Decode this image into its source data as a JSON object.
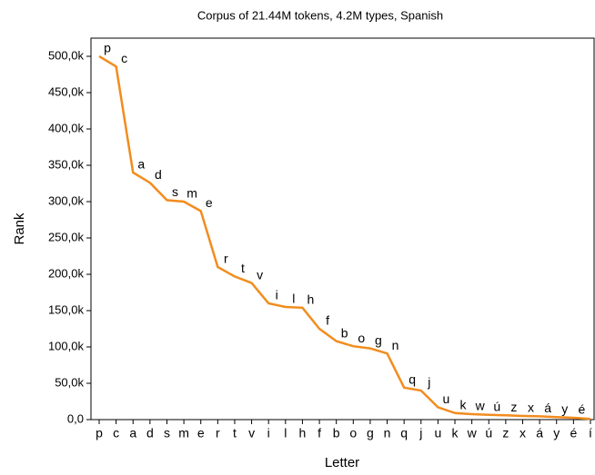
{
  "chart_data": {
    "type": "line",
    "title": "Corpus of 21.44M tokens, 4.2M types, Spanish",
    "x_label": "Letter",
    "y_label": "Rank",
    "categories": [
      "p",
      "c",
      "a",
      "d",
      "s",
      "m",
      "e",
      "r",
      "t",
      "v",
      "i",
      "l",
      "h",
      "f",
      "b",
      "o",
      "g",
      "n",
      "q",
      "j",
      "u",
      "k",
      "w",
      "ú",
      "z",
      "x",
      "á",
      "y",
      "é",
      "í"
    ],
    "values": [
      500000,
      486000,
      340000,
      326000,
      302000,
      300000,
      287000,
      210000,
      197000,
      188000,
      160000,
      155000,
      154000,
      125000,
      108000,
      101000,
      98000,
      91000,
      44000,
      40000,
      17000,
      9000,
      7500,
      6500,
      6000,
      5000,
      4500,
      3500,
      2500,
      1000
    ],
    "color": "#f28c1e",
    "ylim": [
      0,
      525000
    ],
    "yticks": [
      {
        "value": 0,
        "label": "0,0"
      },
      {
        "value": 50000,
        "label": "50,0k"
      },
      {
        "value": 100000,
        "label": "100,0k"
      },
      {
        "value": 150000,
        "label": "150,0k"
      },
      {
        "value": 200000,
        "label": "200,0k"
      },
      {
        "value": 250000,
        "label": "250,0k"
      },
      {
        "value": 300000,
        "label": "300,0k"
      },
      {
        "value": 350000,
        "label": "350,0k"
      },
      {
        "value": 400000,
        "label": "400,0k"
      },
      {
        "value": 450000,
        "label": "450,0k"
      },
      {
        "value": 500000,
        "label": "500,0k"
      }
    ]
  }
}
